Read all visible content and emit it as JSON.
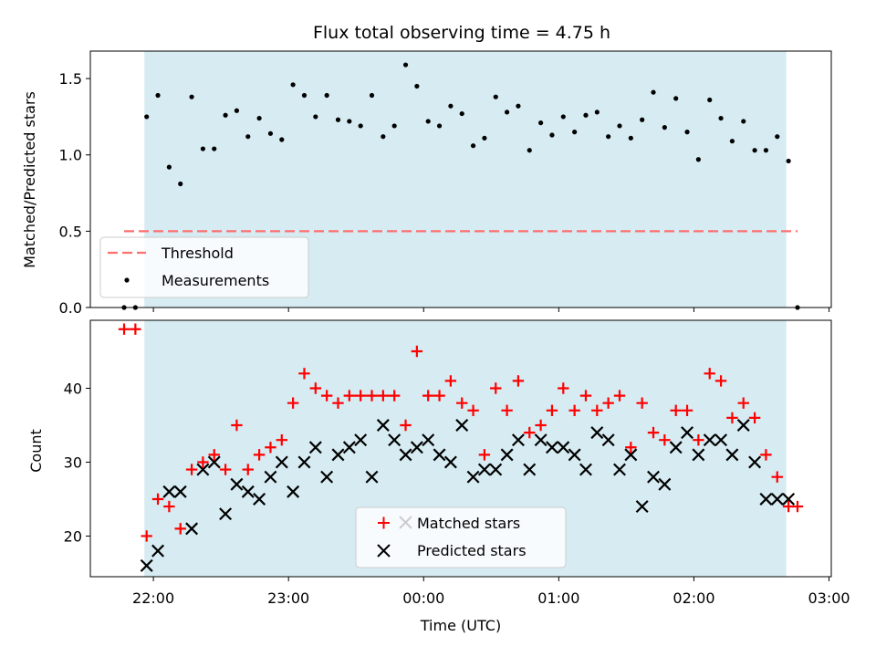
{
  "title": "Flux total observing time = 4.75 h",
  "colors": {
    "shade": "#add8e6",
    "threshold": "#ff6f6f",
    "matched": "#ff0000",
    "predicted": "#000000",
    "measurements": "#000000"
  },
  "chart_data": [
    {
      "type": "scatter",
      "panel": "top",
      "title": "Flux total observing time = 4.75 h",
      "xlabel": "",
      "ylabel": "Matched/Predicted stars",
      "xlim": [
        "21:32",
        "03:01"
      ],
      "ylim": [
        0,
        1.68
      ],
      "yticks": [
        "0.0",
        "0.5",
        "1.0",
        "1.5"
      ],
      "grid": false,
      "legend_position": "lower-left",
      "shaded_interval": [
        "21:56",
        "02:41"
      ],
      "threshold": {
        "name": "Threshold",
        "y": 0.5,
        "x_range": [
          "21:47",
          "02:46"
        ],
        "style": "dashed"
      },
      "series": [
        {
          "name": "Measurements",
          "marker": "dot",
          "x": [
            "21:47",
            "21:52",
            "21:57",
            "22:02",
            "22:07",
            "22:12",
            "22:17",
            "22:22",
            "22:27",
            "22:32",
            "22:37",
            "22:42",
            "22:47",
            "22:52",
            "22:57",
            "23:02",
            "23:07",
            "23:12",
            "23:17",
            "23:22",
            "23:27",
            "23:32",
            "23:37",
            "23:42",
            "23:47",
            "23:52",
            "23:57",
            "00:02",
            "00:07",
            "00:12",
            "00:17",
            "00:22",
            "00:27",
            "00:32",
            "00:37",
            "00:42",
            "00:47",
            "00:52",
            "00:57",
            "01:02",
            "01:07",
            "01:12",
            "01:17",
            "01:22",
            "01:27",
            "01:32",
            "01:37",
            "01:42",
            "01:47",
            "01:52",
            "01:57",
            "02:02",
            "02:07",
            "02:12",
            "02:17",
            "02:22",
            "02:27",
            "02:32",
            "02:37",
            "02:42",
            "02:46"
          ],
          "y": [
            0.0,
            0.0,
            1.25,
            1.39,
            0.92,
            0.81,
            1.38,
            1.04,
            1.04,
            1.26,
            1.29,
            1.12,
            1.24,
            1.14,
            1.1,
            1.46,
            1.39,
            1.25,
            1.39,
            1.23,
            1.22,
            1.19,
            1.39,
            1.12,
            1.19,
            1.59,
            1.45,
            1.22,
            1.19,
            1.32,
            1.27,
            1.06,
            1.11,
            1.38,
            1.28,
            1.32,
            1.03,
            1.21,
            1.13,
            1.25,
            1.15,
            1.26,
            1.28,
            1.12,
            1.19,
            1.11,
            1.23,
            1.41,
            1.18,
            1.37,
            1.15,
            0.97,
            1.36,
            1.24,
            1.09,
            1.22,
            1.03,
            1.03,
            1.12,
            0.96,
            0.0
          ]
        }
      ],
      "legend": [
        "Threshold",
        "Measurements"
      ]
    },
    {
      "type": "scatter",
      "panel": "bottom",
      "xlabel": "Time (UTC)",
      "ylabel": "Count",
      "xlim": [
        "21:32",
        "03:01"
      ],
      "ylim": [
        14.5,
        49.2
      ],
      "xticks": [
        "22:00",
        "23:00",
        "00:00",
        "01:00",
        "02:00",
        "03:00"
      ],
      "yticks": [
        "20",
        "30",
        "40"
      ],
      "grid": false,
      "legend_position": "bottom-center",
      "shaded_interval": [
        "21:56",
        "02:41"
      ],
      "series": [
        {
          "name": "Matched stars",
          "marker": "plus",
          "x": [
            "21:47",
            "21:52",
            "21:57",
            "22:02",
            "22:07",
            "22:12",
            "22:17",
            "22:22",
            "22:27",
            "22:32",
            "22:37",
            "22:42",
            "22:47",
            "22:52",
            "22:57",
            "23:02",
            "23:07",
            "23:12",
            "23:17",
            "23:22",
            "23:27",
            "23:32",
            "23:37",
            "23:42",
            "23:47",
            "23:52",
            "23:57",
            "00:02",
            "00:07",
            "00:12",
            "00:17",
            "00:22",
            "00:27",
            "00:32",
            "00:37",
            "00:42",
            "00:47",
            "00:52",
            "00:57",
            "01:02",
            "01:07",
            "01:12",
            "01:17",
            "01:22",
            "01:27",
            "01:32",
            "01:37",
            "01:42",
            "01:47",
            "01:52",
            "01:57",
            "02:02",
            "02:07",
            "02:12",
            "02:17",
            "02:22",
            "02:27",
            "02:32",
            "02:37",
            "02:42",
            "02:46"
          ],
          "y": [
            48,
            48,
            20,
            25,
            24,
            21,
            29,
            30,
            31,
            29,
            35,
            29,
            31,
            32,
            33,
            38,
            42,
            40,
            39,
            38,
            39,
            39,
            39,
            39,
            39,
            35,
            45,
            39,
            39,
            41,
            38,
            37,
            31,
            40,
            37,
            41,
            34,
            35,
            37,
            40,
            37,
            39,
            37,
            38,
            39,
            32,
            38,
            34,
            33,
            37,
            37,
            33,
            42,
            41,
            36,
            38,
            36,
            31,
            28,
            24,
            24
          ]
        },
        {
          "name": "Predicted stars",
          "marker": "x",
          "x": [
            "21:57",
            "22:02",
            "22:07",
            "22:12",
            "22:17",
            "22:22",
            "22:27",
            "22:32",
            "22:37",
            "22:42",
            "22:47",
            "22:52",
            "22:57",
            "23:02",
            "23:07",
            "23:12",
            "23:17",
            "23:22",
            "23:27",
            "23:32",
            "23:37",
            "23:42",
            "23:47",
            "23:52",
            "23:57",
            "00:02",
            "00:07",
            "00:12",
            "00:17",
            "00:22",
            "00:27",
            "00:32",
            "00:37",
            "00:42",
            "00:47",
            "00:52",
            "00:57",
            "01:02",
            "01:07",
            "01:12",
            "01:17",
            "01:22",
            "01:27",
            "01:32",
            "01:37",
            "01:42",
            "01:47",
            "01:52",
            "01:57",
            "02:02",
            "02:07",
            "02:12",
            "02:17",
            "02:22",
            "02:27",
            "02:32",
            "02:37",
            "02:42"
          ],
          "y": [
            16,
            18,
            26,
            26,
            21,
            29,
            30,
            23,
            27,
            26,
            25,
            28,
            30,
            26,
            30,
            32,
            28,
            31,
            32,
            33,
            28,
            35,
            33,
            31,
            32,
            33,
            31,
            30,
            35,
            28,
            29,
            29,
            31,
            33,
            29,
            33,
            32,
            32,
            31,
            29,
            34,
            33,
            29,
            31,
            24,
            28,
            27,
            32,
            34,
            31,
            33,
            33,
            31,
            35,
            30,
            25,
            25,
            25
          ]
        }
      ],
      "legend": [
        "Matched stars",
        "Predicted stars"
      ]
    }
  ]
}
